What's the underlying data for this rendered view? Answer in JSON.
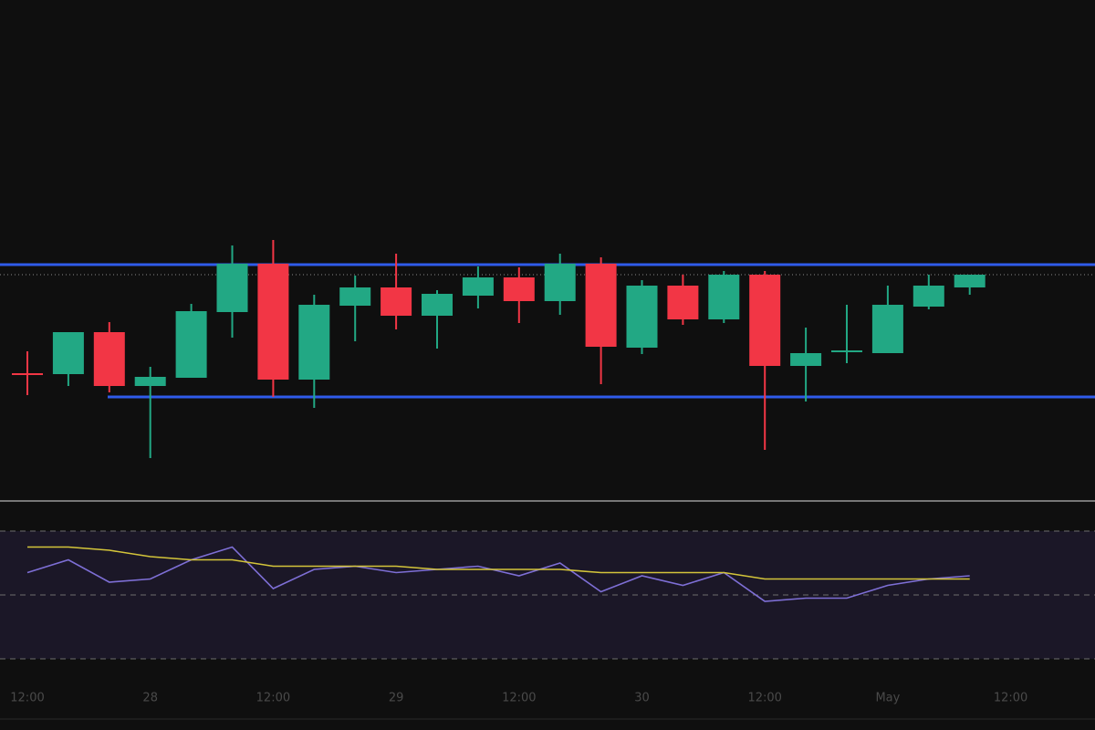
{
  "chart_data": [
    {
      "type": "candlestick",
      "categories": [
        "12:00",
        null,
        null,
        "28",
        null,
        null,
        "12:00",
        null,
        null,
        "29",
        null,
        null,
        "12:00",
        null,
        null,
        "30",
        null,
        null,
        "12:00",
        null,
        null,
        "May",
        null,
        null,
        "12:00"
      ],
      "open": [
        138,
        138,
        184,
        125,
        134,
        206,
        259,
        132,
        213,
        233,
        202,
        224,
        244,
        218,
        259,
        167,
        235,
        198,
        247,
        147,
        163,
        161,
        212,
        233,
        null
      ],
      "high": [
        163,
        184,
        195,
        146,
        215,
        279,
        285,
        225,
        246,
        270,
        230,
        256,
        255,
        270,
        266,
        241,
        247,
        251,
        251,
        189,
        214,
        235,
        247,
        247,
        null
      ],
      "low": [
        115,
        125,
        118,
        46,
        134,
        178,
        113,
        101,
        174,
        187,
        166,
        210,
        194,
        203,
        127,
        160,
        192,
        194,
        55,
        108,
        150,
        161,
        209,
        225,
        null
      ],
      "close": [
        138,
        184,
        125,
        135,
        207,
        259,
        132,
        214,
        233,
        202,
        226,
        244,
        218,
        259,
        168,
        235,
        198,
        247,
        147,
        161,
        163,
        214,
        235,
        247,
        null
      ],
      "up_color": "#22a884",
      "down_color": "#f23645",
      "levels": [
        258,
        113
      ],
      "level_color": "#2f5bea",
      "ylim": [
        0,
        548
      ]
    },
    {
      "type": "line",
      "series": [
        {
          "color": "#7e6fd6",
          "values": [
            57,
            61,
            54,
            55,
            61,
            65,
            52,
            58,
            59,
            57,
            58,
            59,
            56,
            60,
            51,
            56,
            53,
            57,
            48,
            49,
            49,
            53,
            55,
            56,
            null
          ]
        },
        {
          "color": "#d4c53a",
          "values": [
            65,
            65,
            64,
            62,
            61,
            61,
            59,
            59,
            59,
            59,
            58,
            58,
            58,
            58,
            57,
            57,
            57,
            57,
            55,
            55,
            55,
            55,
            55,
            55,
            null
          ]
        }
      ],
      "levels": [
        70,
        50,
        30
      ],
      "ylim": [
        20,
        80
      ]
    }
  ]
}
